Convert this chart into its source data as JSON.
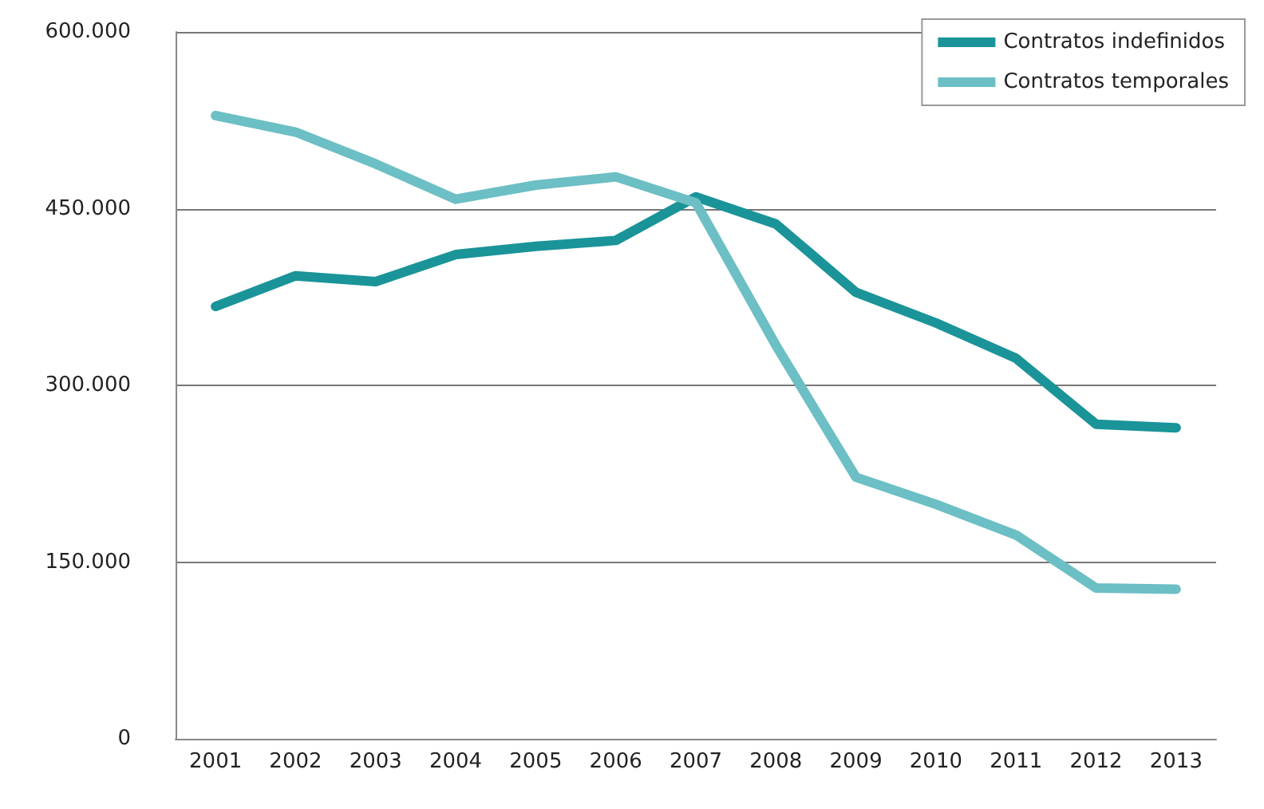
{
  "chart_data": {
    "type": "line",
    "categories": [
      "2001",
      "2002",
      "2003",
      "2004",
      "2005",
      "2006",
      "2007",
      "2008",
      "2009",
      "2010",
      "2011",
      "2012",
      "2013"
    ],
    "series": [
      {
        "name": "Contratos indefinidos",
        "color": "#1a9499",
        "values": [
          367000,
          393000,
          388000,
          411000,
          418000,
          423000,
          460000,
          437000,
          379000,
          353000,
          323000,
          267000,
          264000
        ]
      },
      {
        "name": "Contratos temporales",
        "color": "#6cbfc4",
        "values": [
          529000,
          515000,
          488000,
          458000,
          470000,
          477000,
          455000,
          334000,
          222000,
          199000,
          173000,
          128000,
          127000
        ]
      }
    ],
    "ylim": [
      0,
      600000
    ],
    "yticks": [
      {
        "value": 0,
        "label": "0"
      },
      {
        "value": 150000,
        "label": "150.000"
      },
      {
        "value": 300000,
        "label": "300.000"
      },
      {
        "value": 450000,
        "label": "450.000"
      },
      {
        "value": 600000,
        "label": "600.000"
      }
    ],
    "grid": "y",
    "legend": "top right",
    "marker": "none"
  }
}
